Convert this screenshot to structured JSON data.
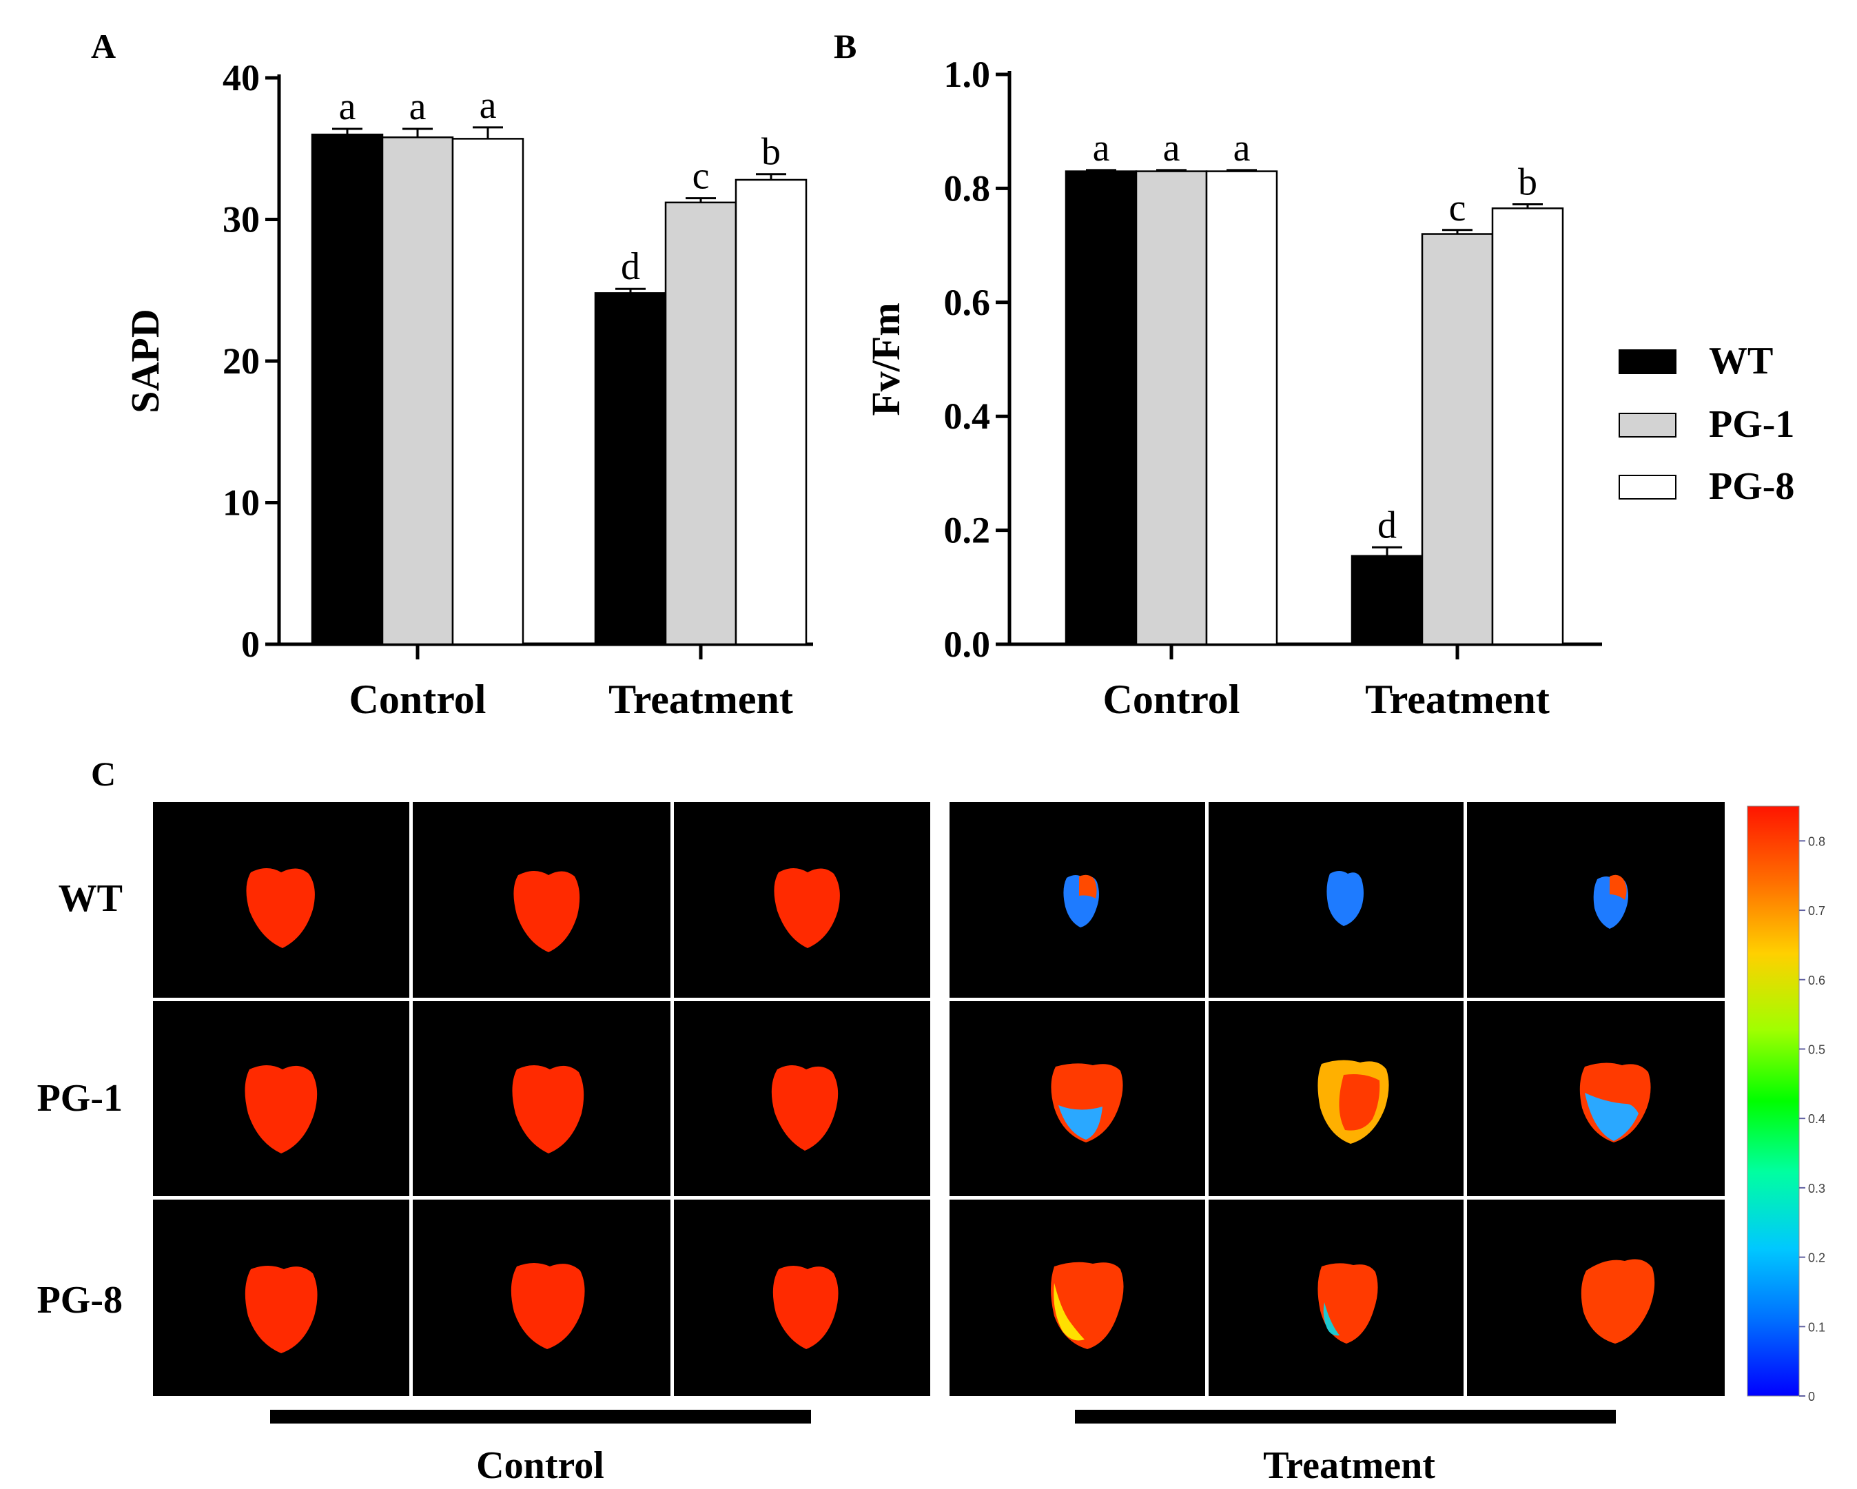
{
  "chart_data": [
    {
      "panel": "A",
      "type": "bar",
      "ylabel": "SAPD",
      "ylim": [
        0,
        40
      ],
      "yticks": [
        "0",
        "10",
        "20",
        "30",
        "40"
      ],
      "categories": [
        "Control",
        "Treatment"
      ],
      "series": [
        {
          "name": "WT",
          "color": "#000000",
          "values": [
            36.0,
            24.8
          ],
          "errors": [
            0.4,
            0.3
          ],
          "letters": [
            "a",
            "d"
          ]
        },
        {
          "name": "PG-1",
          "color": "#d3d3d3",
          "values": [
            35.8,
            31.2
          ],
          "errors": [
            0.6,
            0.3
          ],
          "letters": [
            "a",
            "c"
          ]
        },
        {
          "name": "PG-8",
          "color": "#ffffff",
          "values": [
            35.7,
            32.8
          ],
          "errors": [
            0.8,
            0.4
          ],
          "letters": [
            "a",
            "b"
          ]
        }
      ]
    },
    {
      "panel": "B",
      "type": "bar",
      "ylabel": "Fv/Fm",
      "ylim": [
        0,
        1.0
      ],
      "yticks": [
        "0.0",
        "0.2",
        "0.4",
        "0.6",
        "0.8",
        "1.0"
      ],
      "categories": [
        "Control",
        "Treatment"
      ],
      "series": [
        {
          "name": "WT",
          "color": "#000000",
          "values": [
            0.83,
            0.155
          ],
          "errors": [
            0.002,
            0.015
          ],
          "letters": [
            "a",
            "d"
          ]
        },
        {
          "name": "PG-1",
          "color": "#d3d3d3",
          "values": [
            0.83,
            0.72
          ],
          "errors": [
            0.002,
            0.007
          ],
          "letters": [
            "a",
            "c"
          ]
        },
        {
          "name": "PG-8",
          "color": "#ffffff",
          "values": [
            0.83,
            0.765
          ],
          "errors": [
            0.002,
            0.007
          ],
          "letters": [
            "a",
            "b"
          ]
        }
      ]
    }
  ],
  "legend": [
    {
      "label": "WT",
      "color": "#000000"
    },
    {
      "label": "PG-1",
      "color": "#d3d3d3"
    },
    {
      "label": "PG-8",
      "color": "#ffffff"
    }
  ],
  "panel_labels": {
    "a": "A",
    "b": "B",
    "c": "C"
  },
  "image_grid": {
    "rows": [
      "WT",
      "PG-1",
      "PG-8"
    ],
    "groups": [
      "Control",
      "Treatment"
    ],
    "colorbar": {
      "min": 0,
      "max": 0.85,
      "ticks": [
        "0.8",
        "0.7",
        "0.6",
        "0.5",
        "0.4",
        "0.3",
        "0.2",
        "0.1",
        "0"
      ]
    }
  }
}
